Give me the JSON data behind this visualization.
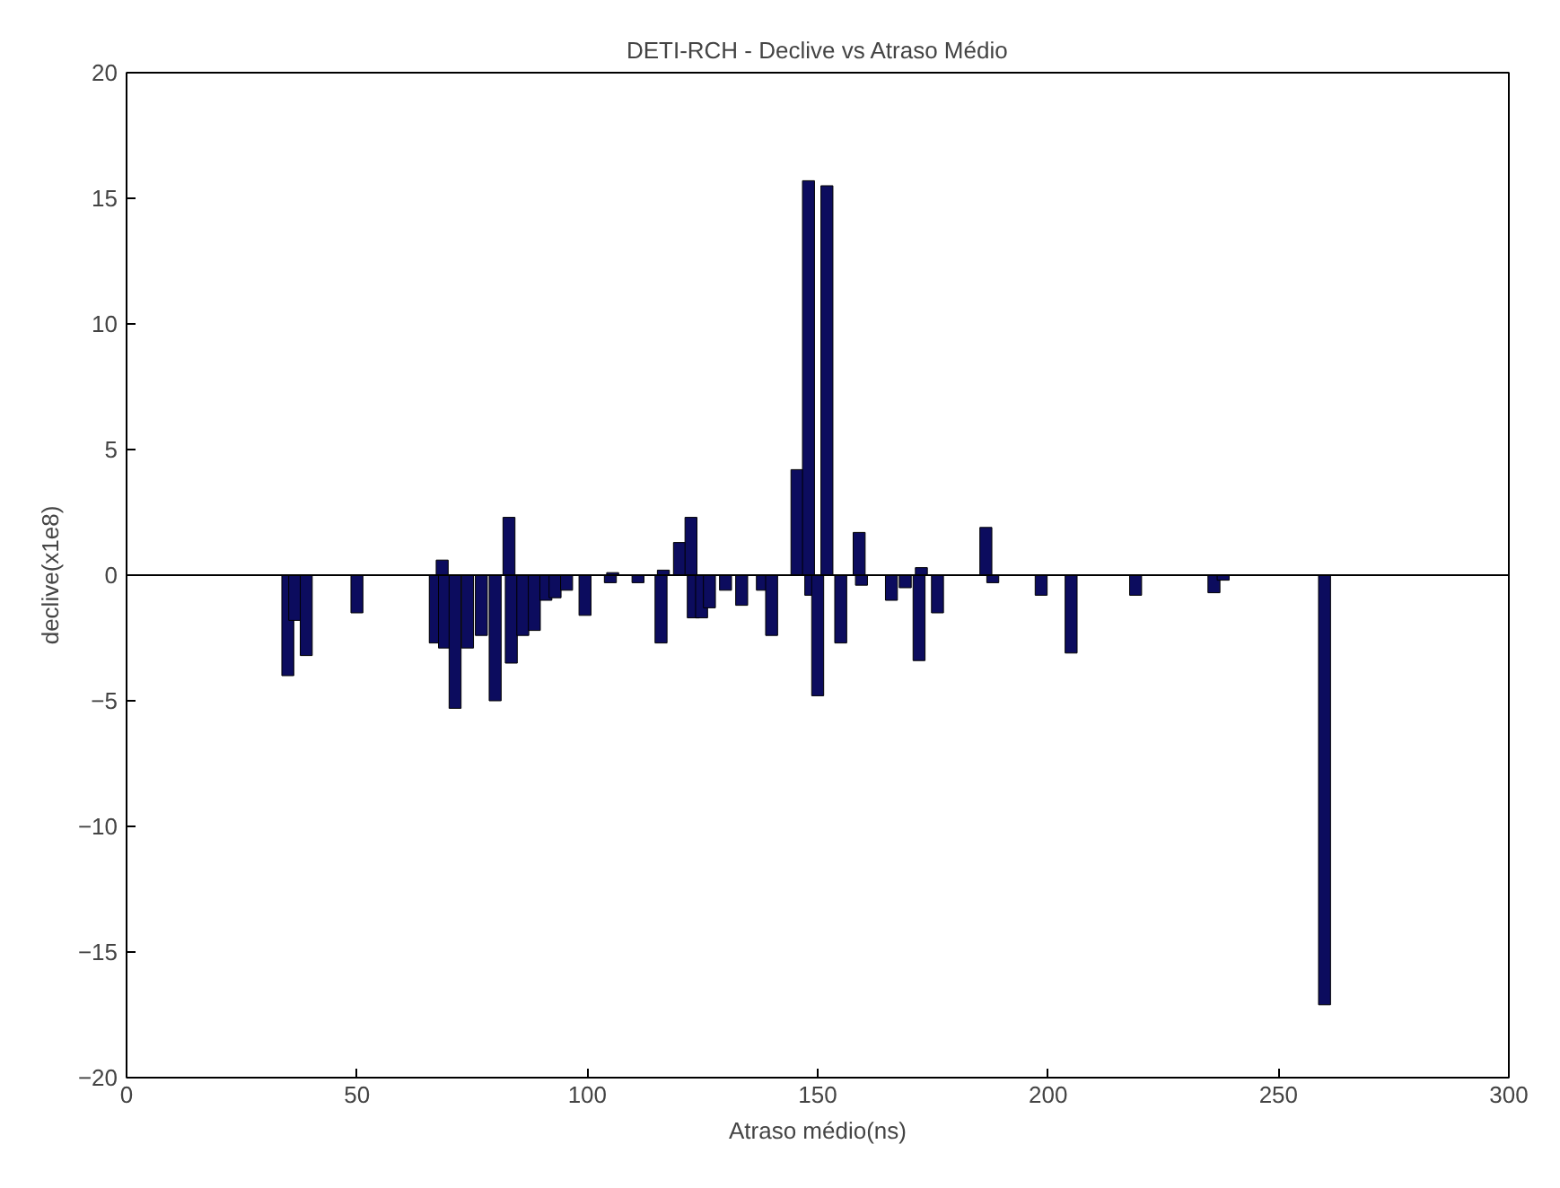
{
  "chart_data": {
    "type": "bar",
    "title": "DETI-RCH - Declive vs Atraso Médio",
    "xlabel": "Atraso médio(ns)",
    "ylabel": "declive(x1e8)",
    "x": [
      35,
      36.5,
      39,
      50,
      67,
      68.5,
      69,
      71.3,
      74,
      77,
      80,
      83,
      83.5,
      86,
      88.5,
      91,
      93,
      95.5,
      99.5,
      105,
      105.5,
      111,
      116,
      116.5,
      120,
      122.5,
      123,
      124.8,
      126.5,
      130,
      133.5,
      138,
      140,
      145.5,
      148,
      148.5,
      150,
      152,
      155,
      159,
      159.5,
      166,
      169,
      172,
      172.5,
      176,
      186.5,
      188,
      198.5,
      205,
      219,
      236,
      238,
      260
    ],
    "values": [
      -4.0,
      -1.8,
      -3.2,
      -1.5,
      -2.7,
      0.6,
      -2.9,
      -5.3,
      -2.9,
      -2.4,
      -5.0,
      2.3,
      -3.5,
      -2.4,
      -2.2,
      -1.0,
      -0.9,
      -0.6,
      -1.6,
      -0.3,
      0.1,
      -0.3,
      -2.7,
      0.2,
      1.3,
      2.3,
      -1.7,
      -1.7,
      -1.3,
      -0.6,
      -1.2,
      -0.6,
      -2.4,
      4.2,
      15.7,
      -0.8,
      -4.8,
      15.5,
      -2.7,
      1.7,
      -0.4,
      -1.0,
      -0.5,
      -3.4,
      0.3,
      -1.5,
      1.9,
      -0.3,
      -0.8,
      -3.1,
      -0.8,
      -0.7,
      -0.2,
      -17.1
    ],
    "color": "#0c0c5e",
    "xlim": [
      0,
      300
    ],
    "ylim": [
      -20,
      20
    ],
    "xticks": [
      0,
      50,
      100,
      150,
      200,
      250,
      300
    ],
    "yticks": [
      -20,
      -15,
      -10,
      -5,
      0,
      5,
      10,
      15,
      20
    ],
    "ref_lines": [
      {
        "axis": "y",
        "value": 0,
        "color": "#000000"
      }
    ]
  }
}
